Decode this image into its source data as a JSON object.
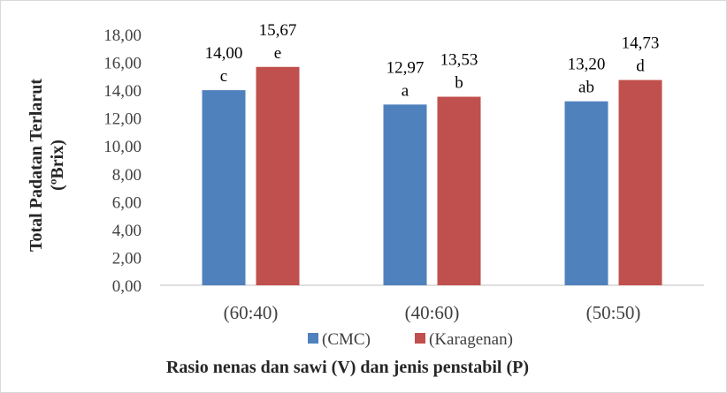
{
  "chart_data": {
    "type": "bar",
    "categories": [
      "(60:40)",
      "(40:60)",
      "(50:50)"
    ],
    "series": [
      {
        "name": "(CMC)",
        "color": "#4f81bd",
        "values": [
          14.0,
          12.97,
          13.2
        ],
        "value_labels": [
          "14,00",
          "12,97",
          "13,20"
        ],
        "letters": [
          "c",
          "a",
          "ab"
        ]
      },
      {
        "name": "(Karagenan)",
        "color": "#c0504d",
        "values": [
          15.67,
          13.53,
          14.73
        ],
        "value_labels": [
          "15,67",
          "13,53",
          "14,73"
        ],
        "letters": [
          "e",
          "b",
          "d"
        ]
      }
    ],
    "ylim": [
      0,
      18
    ],
    "yticks": [
      "0,00",
      "2,00",
      "4,00",
      "6,00",
      "8,00",
      "10,00",
      "12,00",
      "14,00",
      "16,00",
      "18,00"
    ],
    "ylabel_line1": "Total Padatan Terlarut",
    "ylabel_line2": "(ºBrix)",
    "xlabel": "Rasio nenas dan sawi (V) dan jenis penstabil (P)",
    "grid": false,
    "legend_position": "bottom"
  }
}
